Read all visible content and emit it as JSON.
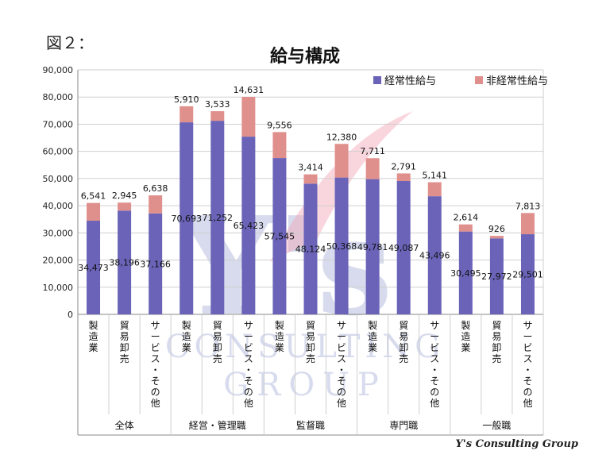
{
  "figure_label": "図２：",
  "credit": "Y's Consulting Group",
  "watermark": {
    "logo": "Y's",
    "line1": "CONSULTING",
    "line2": "GROUP"
  },
  "colors": {
    "regular": "#6a63b8",
    "irregular": "#e0908c",
    "grid": "#cfcfcf",
    "axis": "#888888"
  },
  "chart_data": {
    "type": "bar",
    "stacked": true,
    "title": "給与構成",
    "xlabel": "",
    "ylabel": "",
    "ylim": [
      0,
      90000
    ],
    "yticks": [
      0,
      10000,
      20000,
      30000,
      40000,
      50000,
      60000,
      70000,
      80000,
      90000
    ],
    "ytick_labels": [
      "0",
      "10,000",
      "20,000",
      "30,000",
      "40,000",
      "50,000",
      "60,000",
      "70,000",
      "80,000",
      "90,000"
    ],
    "grid": true,
    "legend": "top-right",
    "groups": [
      {
        "name": "全体",
        "categories": [
          "製造業",
          "貿易卸売",
          "サービス・その他"
        ]
      },
      {
        "name": "経営・管理職",
        "categories": [
          "製造業",
          "貿易卸売",
          "サービス・その他"
        ]
      },
      {
        "name": "監督職",
        "categories": [
          "製造業",
          "貿易卸売",
          "サービス・その他"
        ]
      },
      {
        "name": "専門職",
        "categories": [
          "製造業",
          "貿易卸売",
          "サービス・その他"
        ]
      },
      {
        "name": "一般職",
        "categories": [
          "製造業",
          "貿易卸売",
          "サービス・その他"
        ]
      }
    ],
    "series": [
      {
        "name": "経常性給与",
        "values": [
          34473,
          38196,
          37166,
          70693,
          71252,
          65423,
          57545,
          48124,
          50368,
          49781,
          49087,
          43496,
          30495,
          27972,
          29501
        ],
        "labels": [
          "34,473",
          "38,196",
          "37,166",
          "70,693",
          "71,252",
          "65,423",
          "57,545",
          "48,124",
          "50,368",
          "49,781",
          "49,087",
          "43,496",
          "30,495",
          "27,972",
          "29,501"
        ]
      },
      {
        "name": "非経常性給与",
        "values": [
          6541,
          2945,
          6638,
          5910,
          3533,
          14631,
          9556,
          3414,
          12380,
          7711,
          2791,
          5141,
          2614,
          926,
          7813
        ],
        "labels": [
          "6,541",
          "2,945",
          "6,638",
          "5,910",
          "3,533",
          "14,631",
          "9,556",
          "3,414",
          "12,380",
          "7,711",
          "2,791",
          "5,141",
          "2,614",
          "926",
          "7,813"
        ]
      }
    ]
  }
}
